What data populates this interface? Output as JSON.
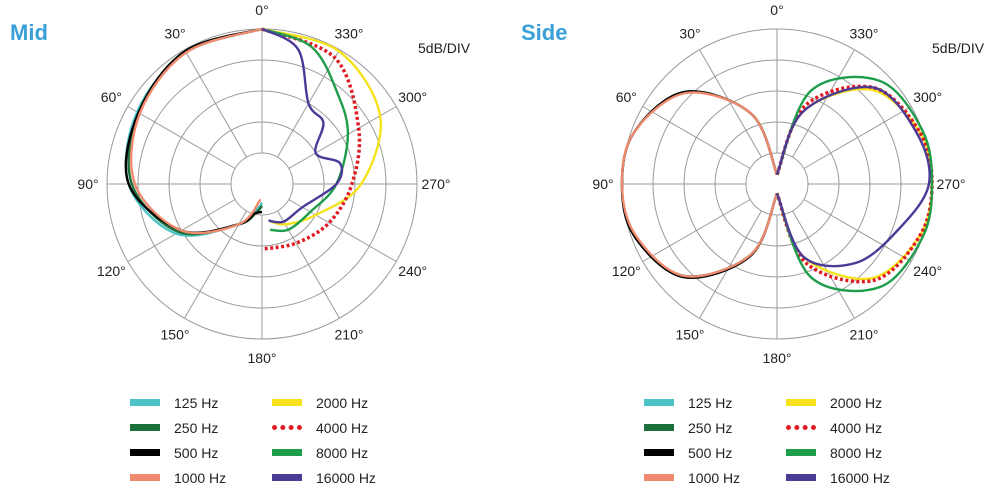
{
  "legend": [
    {
      "label": "125 Hz",
      "color": "#4cc3c6",
      "style": "solid"
    },
    {
      "label": "250 Hz",
      "color": "#1a6f3a",
      "style": "solid"
    },
    {
      "label": "500 Hz",
      "color": "#000000",
      "style": "solid"
    },
    {
      "label": "1000 Hz",
      "color": "#f08a6e",
      "style": "solid"
    },
    {
      "label": "2000 Hz",
      "color": "#f5e21b",
      "style": "solid"
    },
    {
      "label": "4000 Hz",
      "color": "#e11b22",
      "style": "dotted"
    },
    {
      "label": "8000 Hz",
      "color": "#1e9d4b",
      "style": "solid"
    },
    {
      "label": "16000 Hz",
      "color": "#4b3a96",
      "style": "solid"
    }
  ],
  "chart_data": [
    {
      "type": "polar",
      "title": "Mid",
      "unit_label": "5dB/DIV",
      "angle_labels": [
        "0°",
        "30°",
        "60°",
        "90°",
        "120°",
        "150°",
        "180°",
        "210°",
        "240°",
        "270°",
        "300°",
        "330°"
      ],
      "rings": 5,
      "angle_units": "degrees",
      "series": [
        {
          "name": "125 Hz",
          "theta": [
            0,
            30,
            60,
            90,
            120,
            150,
            170,
            180
          ],
          "r": [
            5.0,
            4.9,
            4.65,
            4.3,
            3.2,
            1.5,
            0.8,
            0.6
          ]
        },
        {
          "name": "250 Hz",
          "theta": [
            0,
            30,
            60,
            90,
            120,
            150,
            170,
            180
          ],
          "r": [
            5.0,
            4.95,
            4.6,
            4.2,
            3.1,
            1.5,
            0.9,
            0.7
          ]
        },
        {
          "name": "500 Hz",
          "theta": [
            0,
            30,
            60,
            90,
            120,
            150,
            165,
            180
          ],
          "r": [
            5.0,
            4.95,
            4.6,
            4.3,
            3.0,
            1.5,
            1.0,
            0.9
          ]
        },
        {
          "name": "1000 Hz",
          "theta": [
            0,
            30,
            60,
            90,
            120,
            150,
            175
          ],
          "r": [
            5.0,
            4.9,
            4.55,
            4.1,
            3.0,
            1.5,
            0.5
          ]
        },
        {
          "name": "2000 Hz",
          "theta": [
            0,
            330,
            300,
            270,
            240,
            210,
            190
          ],
          "r": [
            5.0,
            4.95,
            4.4,
            3.2,
            2.0,
            1.5,
            1.2
          ]
        },
        {
          "name": "4000 Hz",
          "theta": [
            0,
            330,
            300,
            270,
            240,
            210,
            180
          ],
          "r": [
            5.0,
            4.7,
            3.6,
            2.9,
            2.5,
            2.2,
            2.1
          ]
        },
        {
          "name": "8000 Hz",
          "theta": [
            0,
            340,
            320,
            300,
            270,
            240,
            210,
            190
          ],
          "r": [
            5.0,
            4.7,
            3.8,
            3.2,
            2.4,
            1.8,
            1.7,
            1.5
          ]
        },
        {
          "name": "16000 Hz",
          "theta": [
            0,
            345,
            330,
            315,
            300,
            285,
            270,
            240,
            210,
            190
          ],
          "r": [
            5.0,
            4.5,
            3.0,
            2.8,
            2.0,
            2.6,
            2.4,
            1.5,
            1.4,
            1.2
          ]
        }
      ]
    },
    {
      "type": "polar",
      "title": "Side",
      "unit_label": "5dB/DIV",
      "angle_labels": [
        "0°",
        "30°",
        "60°",
        "90°",
        "120°",
        "150°",
        "180°",
        "210°",
        "240°",
        "270°",
        "300°",
        "330°"
      ],
      "rings": 5,
      "angle_units": "degrees",
      "series": [
        {
          "name": "125 Hz",
          "theta": [
            0,
            20,
            45,
            70,
            90,
            110,
            135,
            160,
            180
          ],
          "r": [
            0.3,
            2.4,
            4.2,
            4.9,
            5.0,
            4.9,
            4.2,
            2.4,
            0.3
          ]
        },
        {
          "name": "250 Hz",
          "theta": [
            0,
            20,
            45,
            70,
            90,
            110,
            135,
            160,
            180
          ],
          "r": [
            0.3,
            2.4,
            4.2,
            4.9,
            5.0,
            4.9,
            4.2,
            2.4,
            0.3
          ]
        },
        {
          "name": "500 Hz",
          "theta": [
            0,
            20,
            45,
            70,
            90,
            110,
            135,
            160,
            180
          ],
          "r": [
            0.3,
            2.4,
            4.2,
            4.9,
            5.0,
            4.9,
            4.25,
            2.45,
            0.3
          ]
        },
        {
          "name": "1000 Hz",
          "theta": [
            0,
            20,
            45,
            70,
            90,
            110,
            135,
            160,
            180
          ],
          "r": [
            0.3,
            2.4,
            4.15,
            4.9,
            5.0,
            4.85,
            4.2,
            2.4,
            0.3
          ]
        },
        {
          "name": "2000 Hz",
          "theta": [
            360,
            340,
            315,
            290,
            270,
            250,
            225,
            200,
            180
          ],
          "r": [
            0.3,
            2.5,
            4.3,
            4.9,
            5.0,
            4.9,
            4.3,
            2.5,
            0.3
          ]
        },
        {
          "name": "4000 Hz",
          "theta": [
            360,
            340,
            315,
            290,
            270,
            250,
            225,
            200,
            180
          ],
          "r": [
            0.3,
            2.7,
            4.4,
            4.9,
            5.0,
            4.9,
            4.4,
            2.7,
            0.3
          ]
        },
        {
          "name": "8000 Hz",
          "theta": [
            360,
            340,
            315,
            290,
            270,
            250,
            225,
            200,
            180
          ],
          "r": [
            0.3,
            3.2,
            4.7,
            5.0,
            5.0,
            5.0,
            4.7,
            3.2,
            0.3
          ]
        },
        {
          "name": "16000 Hz",
          "theta": [
            360,
            340,
            315,
            290,
            270,
            250,
            225,
            200,
            180
          ],
          "r": [
            0.3,
            2.5,
            4.4,
            4.8,
            4.9,
            4.2,
            3.6,
            2.5,
            0.3
          ]
        }
      ]
    }
  ]
}
